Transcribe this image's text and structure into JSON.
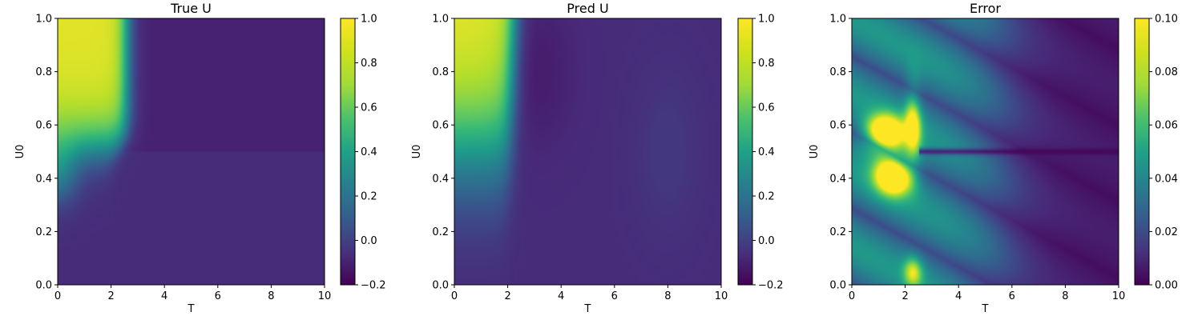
{
  "colormap": "viridis",
  "chart_data": [
    {
      "type": "heatmap",
      "title": "True U",
      "xlabel": "T",
      "ylabel": "U0",
      "xlim": [
        0,
        10
      ],
      "ylim": [
        0,
        1
      ],
      "xticks": [
        "0",
        "2",
        "4",
        "6",
        "8",
        "10"
      ],
      "yticks": [
        "0.0",
        "0.2",
        "0.4",
        "0.6",
        "0.8",
        "1.0"
      ],
      "colorbar": {
        "range": [
          -0.2,
          1.0
        ],
        "ticks": [
          "1.0",
          "0.8",
          "0.6",
          "0.4",
          "0.2",
          "0.0",
          "−0.2"
        ]
      }
    },
    {
      "type": "heatmap",
      "title": "Pred U",
      "xlabel": "T",
      "ylabel": "U0",
      "xlim": [
        0,
        10
      ],
      "ylim": [
        0,
        1
      ],
      "xticks": [
        "0",
        "2",
        "4",
        "6",
        "8",
        "10"
      ],
      "yticks": [
        "0.0",
        "0.2",
        "0.4",
        "0.6",
        "0.8",
        "1.0"
      ],
      "colorbar": {
        "range": [
          -0.2,
          1.0
        ],
        "ticks": [
          "1.0",
          "0.8",
          "0.6",
          "0.4",
          "0.2",
          "0.0",
          "−0.2"
        ]
      }
    },
    {
      "type": "heatmap",
      "title": "Error",
      "xlabel": "T",
      "ylabel": "U0",
      "xlim": [
        0,
        10
      ],
      "ylim": [
        0,
        1
      ],
      "xticks": [
        "0",
        "2",
        "4",
        "6",
        "8",
        "10"
      ],
      "yticks": [
        "0.0",
        "0.2",
        "0.4",
        "0.6",
        "0.8",
        "1.0"
      ],
      "colorbar": {
        "range": [
          0.0,
          0.1
        ],
        "ticks": [
          "0.10",
          "0.08",
          "0.06",
          "0.04",
          "0.02",
          "0.00"
        ]
      }
    }
  ]
}
